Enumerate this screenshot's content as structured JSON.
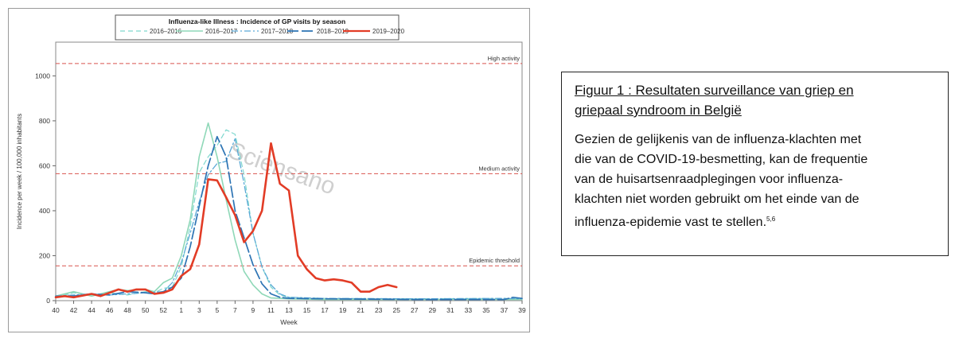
{
  "chart_data": {
    "type": "line",
    "title": "Influenza-like Illness : Incidence of GP visits by season",
    "xlabel": "Week",
    "ylabel": "Incidence per week / 100,000 inhabitants",
    "ylim": [
      0,
      1150
    ],
    "yticks": [
      0,
      200,
      400,
      600,
      800,
      1000
    ],
    "xticks": [
      "40",
      "42",
      "44",
      "46",
      "48",
      "50",
      "52",
      "1",
      "3",
      "5",
      "7",
      "9",
      "11",
      "13",
      "15",
      "17",
      "19",
      "21",
      "23",
      "25",
      "27",
      "29",
      "31",
      "33",
      "35",
      "37",
      "39"
    ],
    "grid": false,
    "legend_position": "top",
    "watermark": "Sciensano",
    "thresholds": [
      {
        "label": "High activity",
        "value": 1055
      },
      {
        "label": "Medium activity",
        "value": 565
      },
      {
        "label": "Epidemic threshold",
        "value": 155
      }
    ],
    "threshold_color": "#d9534f",
    "series": [
      {
        "name": "2016–2016",
        "color": "#7fd8ce",
        "dash": "6,4",
        "width": 1.2,
        "points": [
          [
            0,
            15
          ],
          [
            2,
            35
          ],
          [
            4,
            25
          ],
          [
            6,
            35
          ],
          [
            8,
            25
          ],
          [
            10,
            40
          ],
          [
            11,
            35
          ],
          [
            12,
            55
          ],
          [
            13,
            60
          ],
          [
            14,
            150
          ],
          [
            15,
            330
          ],
          [
            16,
            570
          ],
          [
            17,
            640
          ],
          [
            18,
            690
          ],
          [
            19,
            760
          ],
          [
            20,
            740
          ],
          [
            21,
            560
          ],
          [
            22,
            300
          ],
          [
            23,
            150
          ],
          [
            24,
            60
          ],
          [
            25,
            25
          ],
          [
            26,
            15
          ],
          [
            30,
            10
          ],
          [
            40,
            8
          ],
          [
            50,
            10
          ],
          [
            52,
            8
          ]
        ]
      },
      {
        "name": "2016–2017",
        "color": "#8fd8b8",
        "dash": "",
        "width": 1.6,
        "points": [
          [
            0,
            20
          ],
          [
            2,
            40
          ],
          [
            4,
            20
          ],
          [
            6,
            40
          ],
          [
            7,
            50
          ],
          [
            8,
            45
          ],
          [
            10,
            50
          ],
          [
            11,
            40
          ],
          [
            12,
            80
          ],
          [
            13,
            100
          ],
          [
            14,
            200
          ],
          [
            15,
            360
          ],
          [
            16,
            640
          ],
          [
            17,
            790
          ],
          [
            18,
            640
          ],
          [
            19,
            450
          ],
          [
            20,
            270
          ],
          [
            21,
            130
          ],
          [
            22,
            70
          ],
          [
            23,
            30
          ],
          [
            24,
            12
          ],
          [
            26,
            8
          ],
          [
            30,
            5
          ],
          [
            40,
            5
          ],
          [
            50,
            5
          ],
          [
            52,
            5
          ]
        ]
      },
      {
        "name": "2017–2018",
        "color": "#5aa9d6",
        "dash": "8,3,2,3",
        "width": 1.3,
        "points": [
          [
            0,
            20
          ],
          [
            2,
            25
          ],
          [
            4,
            30
          ],
          [
            6,
            25
          ],
          [
            8,
            30
          ],
          [
            10,
            35
          ],
          [
            12,
            40
          ],
          [
            13,
            80
          ],
          [
            14,
            170
          ],
          [
            15,
            300
          ],
          [
            16,
            440
          ],
          [
            17,
            560
          ],
          [
            18,
            610
          ],
          [
            19,
            620
          ],
          [
            20,
            720
          ],
          [
            21,
            520
          ],
          [
            22,
            300
          ],
          [
            23,
            150
          ],
          [
            24,
            70
          ],
          [
            25,
            30
          ],
          [
            26,
            15
          ],
          [
            30,
            10
          ],
          [
            40,
            8
          ],
          [
            50,
            10
          ],
          [
            52,
            8
          ]
        ]
      },
      {
        "name": "2018–2019",
        "color": "#2d74b4",
        "dash": "14,4",
        "width": 1.7,
        "points": [
          [
            0,
            20
          ],
          [
            2,
            20
          ],
          [
            4,
            30
          ],
          [
            6,
            25
          ],
          [
            8,
            40
          ],
          [
            10,
            35
          ],
          [
            11,
            30
          ],
          [
            12,
            40
          ],
          [
            13,
            60
          ],
          [
            14,
            100
          ],
          [
            15,
            240
          ],
          [
            16,
            420
          ],
          [
            17,
            600
          ],
          [
            18,
            730
          ],
          [
            19,
            640
          ],
          [
            20,
            400
          ],
          [
            21,
            280
          ],
          [
            22,
            160
          ],
          [
            23,
            75
          ],
          [
            24,
            30
          ],
          [
            25,
            15
          ],
          [
            26,
            10
          ],
          [
            30,
            8
          ],
          [
            40,
            5
          ],
          [
            50,
            5
          ],
          [
            51,
            15
          ],
          [
            52,
            10
          ]
        ]
      },
      {
        "name": "2019–2020",
        "color": "#e23c26",
        "dash": "",
        "width": 2.6,
        "points": [
          [
            0,
            15
          ],
          [
            1,
            20
          ],
          [
            2,
            15
          ],
          [
            4,
            30
          ],
          [
            5,
            20
          ],
          [
            6,
            35
          ],
          [
            7,
            50
          ],
          [
            8,
            40
          ],
          [
            9,
            50
          ],
          [
            10,
            50
          ],
          [
            11,
            30
          ],
          [
            12,
            35
          ],
          [
            13,
            50
          ],
          [
            14,
            110
          ],
          [
            15,
            140
          ],
          [
            16,
            250
          ],
          [
            17,
            540
          ],
          [
            18,
            535
          ],
          [
            19,
            460
          ],
          [
            20,
            380
          ],
          [
            21,
            260
          ],
          [
            22,
            310
          ],
          [
            23,
            400
          ],
          [
            24,
            700
          ],
          [
            25,
            520
          ],
          [
            26,
            490
          ],
          [
            27,
            200
          ],
          [
            28,
            140
          ],
          [
            29,
            100
          ],
          [
            30,
            90
          ],
          [
            31,
            95
          ],
          [
            32,
            90
          ],
          [
            33,
            80
          ],
          [
            34,
            40
          ],
          [
            35,
            40
          ],
          [
            36,
            60
          ],
          [
            37,
            70
          ],
          [
            38,
            60
          ]
        ]
      }
    ]
  },
  "caption": {
    "title_line1": "Figuur 1 : Resultaten surveillance van griep en",
    "title_line2": "griepaal syndroom in België",
    "line1": "Gezien de gelijkenis van de influenza-klachten met",
    "line2": "die van de COVID-19-besmetting, kan de frequentie",
    "line3": "van de huisartsenraadplegingen voor influenza-",
    "line4": "klachten niet worden gebruikt om het einde van de",
    "line5": "influenza-epidemie vast te stellen.",
    "superscript": "5,6"
  }
}
